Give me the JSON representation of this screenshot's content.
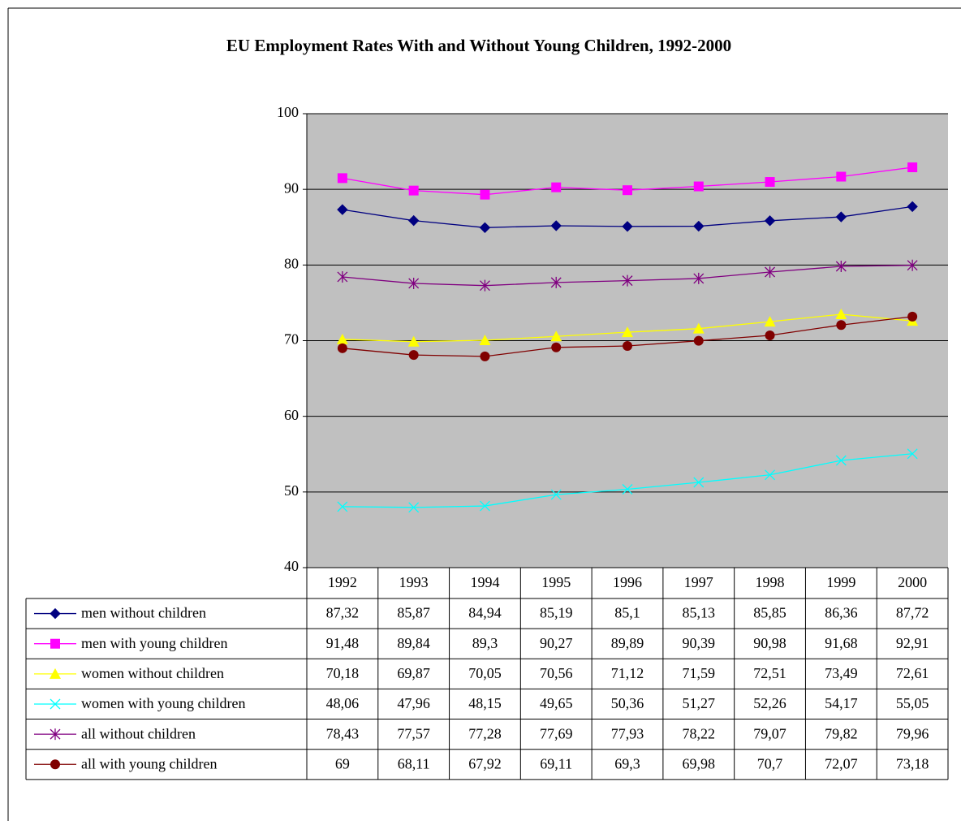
{
  "chart_data": {
    "type": "line",
    "title": "EU Employment Rates With and Without Young Children, 1992-2000",
    "categories": [
      "1992",
      "1993",
      "1994",
      "1995",
      "1996",
      "1997",
      "1998",
      "1999",
      "2000"
    ],
    "ylim": [
      40,
      100
    ],
    "yticks": [
      40,
      50,
      60,
      70,
      80,
      90,
      100
    ],
    "grid": true,
    "series": [
      {
        "name": "men without children",
        "color": "#000080",
        "marker": "diamond",
        "values": [
          87.32,
          85.87,
          84.94,
          85.19,
          85.1,
          85.13,
          85.85,
          86.36,
          87.72
        ],
        "value_labels": [
          "87,32",
          "85,87",
          "84,94",
          "85,19",
          "85,1",
          "85,13",
          "85,85",
          "86,36",
          "87,72"
        ]
      },
      {
        "name": "men with young children",
        "color": "#ff00ff",
        "marker": "square",
        "values": [
          91.48,
          89.84,
          89.3,
          90.27,
          89.89,
          90.39,
          90.98,
          91.68,
          92.91
        ],
        "value_labels": [
          "91,48",
          "89,84",
          "89,3",
          "90,27",
          "89,89",
          "90,39",
          "90,98",
          "91,68",
          "92,91"
        ]
      },
      {
        "name": "women without children",
        "color": "#ffff00",
        "marker": "triangle",
        "values": [
          70.18,
          69.87,
          70.05,
          70.56,
          71.12,
          71.59,
          72.51,
          73.49,
          72.61
        ],
        "value_labels": [
          "70,18",
          "69,87",
          "70,05",
          "70,56",
          "71,12",
          "71,59",
          "72,51",
          "73,49",
          "72,61"
        ]
      },
      {
        "name": "women with young children",
        "color": "#00ffff",
        "marker": "x",
        "values": [
          48.06,
          47.96,
          48.15,
          49.65,
          50.36,
          51.27,
          52.26,
          54.17,
          55.05
        ],
        "value_labels": [
          "48,06",
          "47,96",
          "48,15",
          "49,65",
          "50,36",
          "51,27",
          "52,26",
          "54,17",
          "55,05"
        ]
      },
      {
        "name": "all without children",
        "color": "#800080",
        "marker": "star",
        "values": [
          78.43,
          77.57,
          77.28,
          77.69,
          77.93,
          78.22,
          79.07,
          79.82,
          79.96
        ],
        "value_labels": [
          "78,43",
          "77,57",
          "77,28",
          "77,69",
          "77,93",
          "78,22",
          "79,07",
          "79,82",
          "79,96"
        ]
      },
      {
        "name": "all with young children",
        "color": "#800000",
        "marker": "circle",
        "values": [
          69,
          68.11,
          67.92,
          69.11,
          69.3,
          69.98,
          70.7,
          72.07,
          73.18
        ],
        "value_labels": [
          "69",
          "68,11",
          "67,92",
          "69,11",
          "69,3",
          "69,98",
          "70,7",
          "72,07",
          "73,18"
        ]
      }
    ]
  }
}
